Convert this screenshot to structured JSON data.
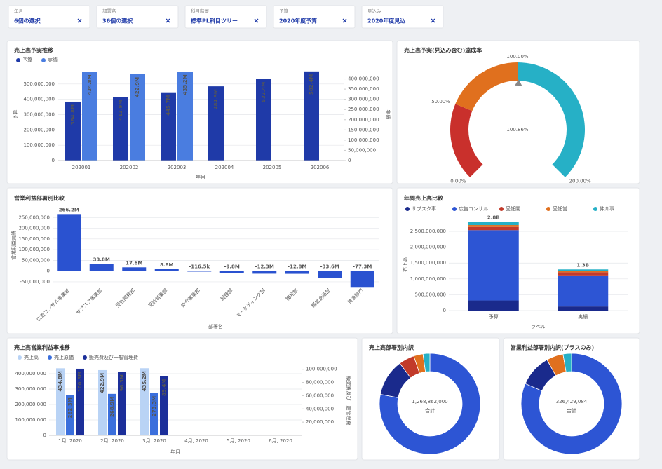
{
  "filters": [
    {
      "label": "年月",
      "value": "6個の選択"
    },
    {
      "label": "部署名",
      "value": "36個の選択"
    },
    {
      "label": "科目階層",
      "value": "標準PL科目ツリー"
    },
    {
      "label": "予算",
      "value": "2020年度予算"
    },
    {
      "label": "見込み",
      "value": "2020年度見込"
    }
  ],
  "chart_data": [
    {
      "type": "bar",
      "title": "売上高予実推移",
      "legend": "top-left",
      "categories": [
        "202001",
        "202002",
        "202003",
        "202004",
        "202005",
        "202006"
      ],
      "series": [
        {
          "name": "予算",
          "color": "#1f3aa8",
          "values": [
            384800000,
            413900000,
            445700000,
            484900000,
            532400000,
            582400000
          ],
          "value_labels": [
            "384.8M",
            "413.9M",
            "445.7M",
            "484.9M",
            "532.4M",
            "582.4M"
          ]
        },
        {
          "name": "実績",
          "color": "#4a7de0",
          "axis": "y2",
          "values": [
            434800000,
            422900000,
            435200000,
            null,
            null,
            null
          ],
          "value_labels": [
            "434.8M",
            "422.9M",
            "435.2M",
            null,
            null,
            null
          ]
        }
      ],
      "ylim": [
        0,
        600000000
      ],
      "yticks": [
        0,
        {
          "value": 100000000,
          "label": "100,000,000"
        },
        {
          "value": 200000000,
          "label": "200,000,000"
        },
        {
          "value": 300000000,
          "label": "300,000,000"
        },
        {
          "value": 400000000,
          "label": "400,000,000"
        },
        {
          "value": 500000000,
          "label": "500,000,000"
        }
      ],
      "y2lim": [
        0,
        450000000
      ],
      "y2ticks": [
        0,
        {
          "value": 50000000,
          "label": "50,000,000"
        },
        {
          "value": 100000000,
          "label": "100,000,000"
        },
        {
          "value": 150000000,
          "label": "150,000,000"
        },
        {
          "value": 200000000,
          "label": "200,000,000"
        },
        {
          "value": 250000000,
          "label": "250,000,000"
        },
        {
          "value": 300000000,
          "label": "300,000,000"
        },
        {
          "value": 350000000,
          "label": "350,000,000"
        },
        {
          "value": 400000000,
          "label": "400,000,000"
        }
      ],
      "xlabel": "年月",
      "ylabel": "予算",
      "y2label": "実績",
      "grid": true
    },
    {
      "type": "gauge",
      "title": "売上高予実(見込み含む)達成率",
      "value": 100.86,
      "value_label": "100.86%",
      "range": [
        0,
        200
      ],
      "bands": [
        {
          "from": 0,
          "to": 50,
          "color": "#c9302c"
        },
        {
          "from": 50,
          "to": 100,
          "color": "#e0701e"
        },
        {
          "from": 100,
          "to": 200,
          "color": "#26b0c6"
        }
      ],
      "ticks": [
        {
          "value": 0,
          "label": "0.00%"
        },
        {
          "value": 50,
          "label": "50.00%"
        },
        {
          "value": 100,
          "label": "100.00%"
        },
        {
          "value": 200,
          "label": "200.00%"
        }
      ]
    },
    {
      "type": "bar",
      "title": "営業利益部署別比較",
      "color": "#2a52d0",
      "categories": [
        "広告コンサル事業部",
        "サブスク事業部",
        "受託開発部",
        "受託営業部",
        "仲介事業部",
        "経理部",
        "マーケティング部",
        "開発部",
        "経営企画部",
        "共通部門"
      ],
      "series": [
        {
          "name": null,
          "color": "#2a52d0",
          "values": [
            266200000,
            33800000,
            17600000,
            8800000,
            -116500,
            -9800000,
            -12300000,
            -12800000,
            -33600000,
            -77300000
          ],
          "value_labels": [
            "266.2M",
            "33.8M",
            "17.6M",
            "8.8M",
            "-116.5k",
            "-9.8M",
            "-12.3M",
            "-12.8M",
            "-33.6M",
            "-77.3M"
          ]
        }
      ],
      "ylim": [
        -60000000,
        300000000
      ],
      "yticks": [
        {
          "value": -50000000,
          "label": "-50,000,000"
        },
        0,
        {
          "value": 50000000,
          "label": "50,000,000"
        },
        {
          "value": 100000000,
          "label": "100,000,000"
        },
        {
          "value": 150000000,
          "label": "150,000,000"
        },
        {
          "value": 200000000,
          "label": "200,000,000"
        },
        {
          "value": 250000000,
          "label": "250,000,000"
        }
      ],
      "xlabel": "部署名",
      "ylabel": "営業利益実績",
      "grid": true
    },
    {
      "type": "stacked_bar",
      "title": "年間売上高比較",
      "legend": "top-left",
      "categories": [
        "予算",
        "実績"
      ],
      "series": [
        {
          "name": "サブスク事...",
          "color": "#1a2a8c",
          "values": [
            320000000,
            130000000
          ]
        },
        {
          "name": "広告コンサル...",
          "color": "#2d55d4",
          "values": [
            2220000000,
            980000000
          ]
        },
        {
          "name": "受託開...",
          "color": "#c23a2a",
          "values": [
            100000000,
            100000000
          ]
        },
        {
          "name": "受託営...",
          "color": "#e0701e",
          "values": [
            60000000,
            40000000
          ]
        },
        {
          "name": "仲介事...",
          "color": "#26b0c6",
          "values": [
            100000000,
            50000000
          ]
        }
      ],
      "totals": [
        2800000000,
        1300000000
      ],
      "total_labels": [
        "2.8B",
        "1.3B"
      ],
      "ylim": [
        0,
        2900000000
      ],
      "yticks": [
        0,
        {
          "value": 500000000,
          "label": "500,000,000"
        },
        {
          "value": 1000000000,
          "label": "1,000,000,000"
        },
        {
          "value": 1500000000,
          "label": "1,500,000,000"
        },
        {
          "value": 2000000000,
          "label": "2,000,000,000"
        },
        {
          "value": 2500000000,
          "label": "2,500,000,000"
        }
      ],
      "xlabel": "ラベル",
      "ylabel": "売上高",
      "grid": true
    },
    {
      "type": "bar",
      "title": "売上高営業利益率推移",
      "legend": "top-left",
      "categories": [
        "1月, 2020",
        "2月, 2020",
        "3月, 2020",
        "4月, 2020",
        "5月, 2020",
        "6月, 2020"
      ],
      "series": [
        {
          "name": "売上高",
          "color": "#b9d3f5",
          "values": [
            434800000,
            422900000,
            435200000,
            null,
            null,
            null
          ],
          "value_labels": [
            "434.8M",
            "422.9M",
            "435.2M",
            null,
            null,
            null
          ]
        },
        {
          "name": "売上原価",
          "color": "#3b6fdc",
          "values": [
            262300000,
            268900000,
            273300000,
            null,
            null,
            null
          ],
          "value_labels": [
            "262.3M",
            "268.9M",
            "273.3M",
            null,
            null,
            null
          ]
        },
        {
          "name": "販売費及び一般管理費",
          "color": "#1c2f9a",
          "axis": "y2",
          "values": [
            100800000,
            96300000,
            89400000,
            null,
            null,
            null
          ],
          "value_labels": [
            "100.8M",
            "96.3M",
            "89.4M",
            null,
            null,
            null
          ]
        }
      ],
      "ylim": [
        0,
        450000000
      ],
      "yticks": [
        0,
        {
          "value": 100000000,
          "label": "100,000,000"
        },
        {
          "value": 200000000,
          "label": "200,000,000"
        },
        {
          "value": 300000000,
          "label": "300,000,000"
        },
        {
          "value": 400000000,
          "label": "400,000,000"
        }
      ],
      "y2lim": [
        0,
        105000000
      ],
      "y2ticks": [
        {
          "value": 20000000,
          "label": "20,000,000"
        },
        {
          "value": 40000000,
          "label": "40,000,000"
        },
        {
          "value": 60000000,
          "label": "60,000,000"
        },
        {
          "value": 80000000,
          "label": "80,000,000"
        },
        {
          "value": 100000000,
          "label": "100,000,000"
        }
      ],
      "xlabel": "年月",
      "y2label": "販売費及び一般管理費",
      "grid": true
    },
    {
      "type": "donut",
      "title": "売上高部署別内訳",
      "values": [
        990000000,
        150000000,
        63000000,
        38000000,
        27862000
      ],
      "colors": [
        "#2d55d4",
        "#1a2a8c",
        "#c23a2a",
        "#e0701e",
        "#26b0c6"
      ],
      "total": 1268862000,
      "total_label": "1,268,862,000",
      "total_caption": "合計"
    },
    {
      "type": "donut",
      "title": "営業利益部署別内訳(プラスのみ)",
      "values": [
        266200000,
        33800000,
        17600000,
        8829084
      ],
      "colors": [
        "#2d55d4",
        "#1a2a8c",
        "#e0701e",
        "#26b0c6"
      ],
      "total": 326429084,
      "total_label": "326,429,084",
      "total_caption": "合計"
    }
  ]
}
